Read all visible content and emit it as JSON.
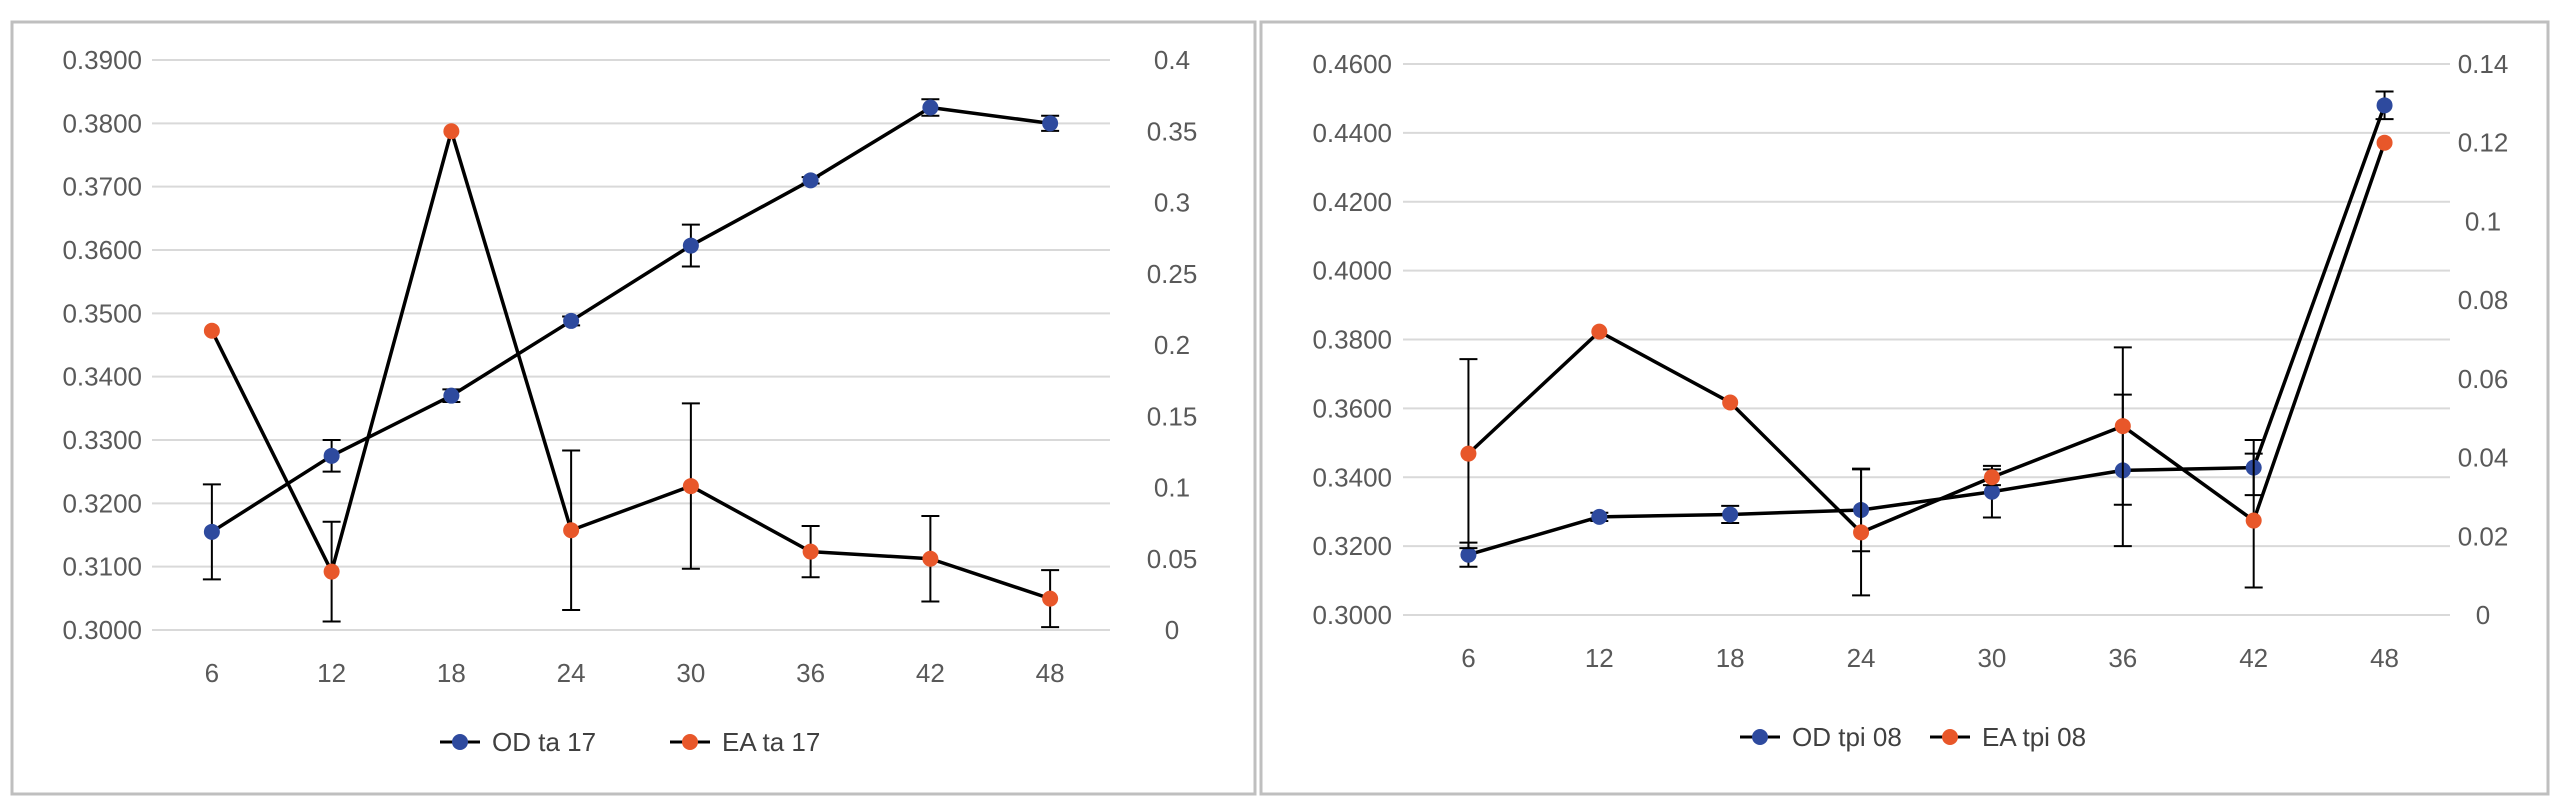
{
  "colors": {
    "od": "#2E4A9E",
    "ea": "#E8572A",
    "line": "#000000",
    "grid": "#D9D9D9",
    "frame": "#BFBFBF"
  },
  "chart_data": [
    {
      "type": "line",
      "categories": [
        "6",
        "12",
        "18",
        "24",
        "30",
        "36",
        "42",
        "48"
      ],
      "y_left": {
        "min": 0.3,
        "max": 0.39,
        "ticks": [
          "0.3000",
          "0.3100",
          "0.3200",
          "0.3300",
          "0.3400",
          "0.3500",
          "0.3600",
          "0.3700",
          "0.3800",
          "0.3900"
        ]
      },
      "y_right": {
        "min": 0,
        "max": 0.4,
        "ticks": [
          "0",
          "0.05",
          "0.1",
          "0.15",
          "0.2",
          "0.25",
          "0.3",
          "0.35",
          "0.4"
        ]
      },
      "grid": true,
      "legend_position": "bottom",
      "series": [
        {
          "name": "OD ta 17",
          "axis": "left",
          "color_key": "od",
          "values": [
            0.3155,
            0.3275,
            0.337,
            0.3488,
            0.3607,
            0.371,
            0.3825,
            0.38
          ],
          "error": [
            0.0075,
            0.0025,
            0.001,
            0.0007,
            0.0033,
            0.0005,
            0.0013,
            0.0012
          ]
        },
        {
          "name": "EA ta 17",
          "axis": "right",
          "color_key": "ea",
          "values": [
            0.21,
            0.041,
            0.35,
            0.07,
            0.101,
            0.055,
            0.05,
            0.022
          ],
          "error": [
            0,
            0.035,
            0,
            0.056,
            0.058,
            0.018,
            0.03,
            0.02
          ]
        }
      ]
    },
    {
      "type": "line",
      "categories": [
        "6",
        "12",
        "18",
        "24",
        "30",
        "36",
        "42",
        "48"
      ],
      "y_left": {
        "min": 0.3,
        "max": 0.46,
        "ticks": [
          "0.3000",
          "0.3200",
          "0.3400",
          "0.3600",
          "0.3800",
          "0.4000",
          "0.4200",
          "0.4400",
          "0.4600"
        ]
      },
      "y_right": {
        "min": 0,
        "max": 0.14,
        "ticks": [
          "0",
          "0.02",
          "0.04",
          "0.06",
          "0.08",
          "0.1",
          "0.12",
          "0.14"
        ]
      },
      "grid": true,
      "legend_position": "bottom",
      "series": [
        {
          "name": "OD tpi 08",
          "axis": "left",
          "color_key": "od",
          "values": [
            0.3175,
            0.3285,
            0.3292,
            0.3305,
            0.3358,
            0.342,
            0.3428,
            0.448
          ],
          "error": [
            0.0035,
            0.0012,
            0.0025,
            0.012,
            0.0075,
            0.022,
            0.008,
            0.004
          ]
        },
        {
          "name": "EA tpi 08",
          "axis": "right",
          "color_key": "ea",
          "values": [
            0.041,
            0.072,
            0.054,
            0.021,
            0.035,
            0.048,
            0.024,
            0.12
          ],
          "error": [
            0.024,
            0,
            0,
            0.016,
            0.002,
            0.02,
            0.017,
            0
          ]
        }
      ]
    }
  ]
}
